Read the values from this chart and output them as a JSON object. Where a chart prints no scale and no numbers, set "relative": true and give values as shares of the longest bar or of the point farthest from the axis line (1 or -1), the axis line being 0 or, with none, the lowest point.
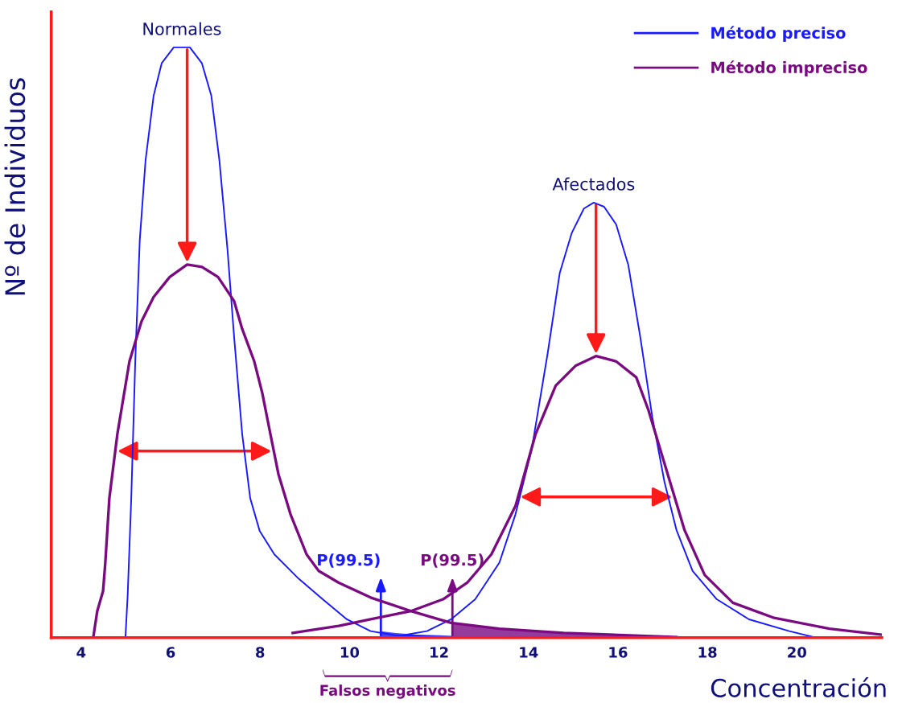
{
  "chart_data": {
    "type": "line",
    "relative": true,
    "xlabel": "Concentración",
    "ylabel": "Nº de Individuos",
    "xlim": [
      3.33,
      21.9
    ],
    "xticks": [
      4,
      6,
      8,
      10,
      12,
      14,
      16,
      18,
      20
    ],
    "legend": "top right",
    "grid": false,
    "marker": "none",
    "line_style": "solid",
    "series": [
      {
        "name": "Método preciso",
        "color": "#1a1aff",
        "x": [
          4.99,
          5.04,
          5.12,
          5.21,
          5.31,
          5.44,
          5.62,
          5.8,
          6.07,
          6.43,
          6.7,
          6.91,
          7.09,
          7.27,
          7.42,
          7.6,
          7.78,
          7.99,
          8.32,
          8.86,
          9.4,
          9.94,
          10.47,
          11.01,
          11.55,
          12.27
        ],
        "values": [
          0,
          0.072,
          0.236,
          0.469,
          0.673,
          0.809,
          0.918,
          0.973,
          1,
          1,
          0.973,
          0.918,
          0.809,
          0.659,
          0.509,
          0.345,
          0.236,
          0.181,
          0.141,
          0.1,
          0.065,
          0.031,
          0.011,
          0.004,
          0.003,
          0
        ]
      },
      {
        "color": "#1a1aff",
        "x": [
          11.19,
          11.73,
          12.27,
          12.81,
          13.35,
          13.71,
          14.07,
          14.43,
          14.7,
          14.97,
          15.24,
          15.46,
          15.69,
          15.96,
          16.23,
          16.5,
          16.77,
          17.04,
          17.31,
          17.67,
          18.21,
          18.93,
          19.83,
          20.37
        ],
        "values": [
          0.004,
          0.011,
          0.031,
          0.065,
          0.127,
          0.209,
          0.318,
          0.482,
          0.618,
          0.686,
          0.727,
          0.737,
          0.73,
          0.7,
          0.632,
          0.509,
          0.373,
          0.264,
          0.182,
          0.113,
          0.065,
          0.031,
          0.011,
          0.001
        ]
      },
      {
        "name": "Método impreciso",
        "color": "#7b0a82",
        "x": [
          4.27,
          4.36,
          4.49,
          4.54,
          4.63,
          4.81,
          5.08,
          5.35,
          5.62,
          5.98,
          6.37,
          6.7,
          7.06,
          7.42,
          7.6,
          7.87,
          8.05,
          8.23,
          8.41,
          8.68,
          9.04,
          9.31,
          9.76,
          10.47,
          11.37,
          12.27,
          13.35,
          14.79,
          17.31
        ],
        "values": [
          0,
          0.045,
          0.079,
          0.127,
          0.236,
          0.345,
          0.468,
          0.536,
          0.577,
          0.611,
          0.632,
          0.628,
          0.611,
          0.57,
          0.523,
          0.468,
          0.414,
          0.345,
          0.277,
          0.209,
          0.141,
          0.113,
          0.093,
          0.068,
          0.045,
          0.025,
          0.015,
          0.008,
          0.001
        ]
      },
      {
        "color": "#7b0a82",
        "x": [
          8.73,
          9.76,
          10.47,
          11.37,
          12.09,
          12.63,
          13.17,
          13.71,
          14.16,
          14.61,
          15.06,
          15.51,
          15.96,
          16.41,
          16.68,
          16.95,
          17.22,
          17.49,
          17.94,
          18.57,
          19.47,
          20.73,
          21.9
        ],
        "values": [
          0.008,
          0.02,
          0.031,
          0.045,
          0.065,
          0.093,
          0.141,
          0.223,
          0.345,
          0.427,
          0.461,
          0.477,
          0.468,
          0.441,
          0.386,
          0.318,
          0.25,
          0.182,
          0.106,
          0.059,
          0.034,
          0.015,
          0.005
        ]
      },
      {
        "type": "area",
        "color": "#1a1aff",
        "x": [
          10.7,
          11.0,
          11.5,
          12.0,
          12.3
        ],
        "values": [
          0.011,
          0.008,
          0.005,
          0.004,
          0.003
        ]
      },
      {
        "type": "area",
        "color": "#7b0a82",
        "x": [
          12.3,
          13.35,
          14.79,
          16.0,
          17.5
        ],
        "values": [
          0.025,
          0.015,
          0.008,
          0.004,
          0
        ]
      }
    ],
    "annotations": [
      {
        "text": "Normales",
        "x": 6.25,
        "y": 1
      },
      {
        "text": "Afectados",
        "x": 15.46,
        "y": 0.737
      },
      "P(99.5)",
      "P(99.5)",
      "Falsos negativos"
    ]
  }
}
